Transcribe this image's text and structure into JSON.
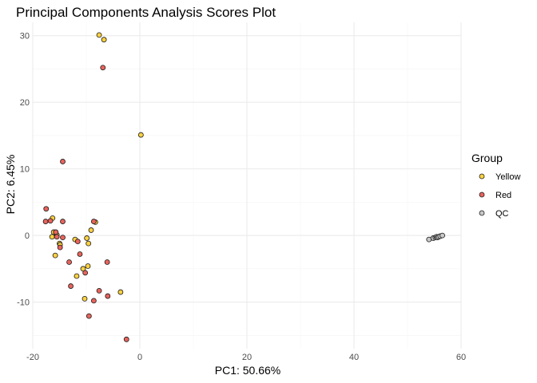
{
  "chart_data": {
    "type": "scatter",
    "title": "Principal Components Analysis Scores Plot",
    "xlabel": "PC1: 50.66%",
    "ylabel": "PC2: 6.45%",
    "xlim": [
      -20,
      60
    ],
    "ylim": [
      -17,
      32
    ],
    "x_ticks": [
      -20,
      0,
      20,
      40,
      60
    ],
    "y_ticks": [
      -10,
      0,
      10,
      20,
      30
    ],
    "x_tick_labels": [
      "-20",
      "0",
      "20",
      "40",
      "60"
    ],
    "y_tick_labels": [
      "-10",
      "0",
      "10",
      "20",
      "30"
    ],
    "x_minor_ticks": [
      -10,
      10,
      30,
      50
    ],
    "y_minor_ticks": [
      -15,
      -5,
      5,
      15,
      25
    ],
    "grid": true,
    "legend": {
      "title": "Group",
      "position": "right",
      "entries": [
        {
          "label": "Yellow",
          "color": "#FFD23F"
        },
        {
          "label": "Red",
          "color": "#E8645C"
        },
        {
          "label": "QC",
          "color": "#C8C8C8"
        }
      ]
    },
    "series": [
      {
        "name": "Yellow",
        "color": "#FFD23F",
        "points": [
          [
            -7.6,
            30.1
          ],
          [
            -6.7,
            29.4
          ],
          [
            0.2,
            15.1
          ],
          [
            -16.3,
            2.6
          ],
          [
            -16.1,
            0.5
          ],
          [
            -16.4,
            -0.2
          ],
          [
            -15.5,
            0.1
          ],
          [
            -15.0,
            -1.2
          ],
          [
            -15.8,
            -3.0
          ],
          [
            -14.9,
            -1.4
          ],
          [
            -12.1,
            -0.6
          ],
          [
            -11.8,
            -6.1
          ],
          [
            -10.6,
            -5.0
          ],
          [
            -10.3,
            -9.5
          ],
          [
            -9.9,
            -0.4
          ],
          [
            -9.7,
            -4.6
          ],
          [
            -9.6,
            -1.2
          ],
          [
            -9.1,
            0.8
          ],
          [
            -8.3,
            2.0
          ],
          [
            -3.6,
            -8.5
          ]
        ]
      },
      {
        "name": "Red",
        "color": "#E8645C",
        "points": [
          [
            -6.9,
            25.2
          ],
          [
            -14.4,
            11.1
          ],
          [
            -17.5,
            4.0
          ],
          [
            -17.6,
            2.1
          ],
          [
            -16.7,
            2.2
          ],
          [
            -15.7,
            0.5
          ],
          [
            -15.5,
            -0.2
          ],
          [
            -14.9,
            -1.8
          ],
          [
            -14.4,
            2.1
          ],
          [
            -14.4,
            -0.3
          ],
          [
            -13.2,
            -4.0
          ],
          [
            -12.9,
            -7.6
          ],
          [
            -11.6,
            -0.9
          ],
          [
            -11.2,
            -2.8
          ],
          [
            -10.2,
            -5.6
          ],
          [
            -9.5,
            -12.1
          ],
          [
            -8.6,
            -9.8
          ],
          [
            -8.6,
            2.1
          ],
          [
            -7.6,
            -8.3
          ],
          [
            -6.1,
            -4.0
          ],
          [
            -6.0,
            -9.1
          ],
          [
            -2.5,
            -15.6
          ]
        ]
      },
      {
        "name": "QC",
        "color": "#C8C8C8",
        "points": [
          [
            54.0,
            -0.6
          ],
          [
            54.8,
            -0.4
          ],
          [
            55.2,
            -0.3
          ],
          [
            55.4,
            -0.2
          ],
          [
            55.6,
            -0.3
          ],
          [
            55.8,
            -0.2
          ],
          [
            56.1,
            -0.1
          ],
          [
            56.5,
            0.0
          ]
        ]
      }
    ]
  }
}
